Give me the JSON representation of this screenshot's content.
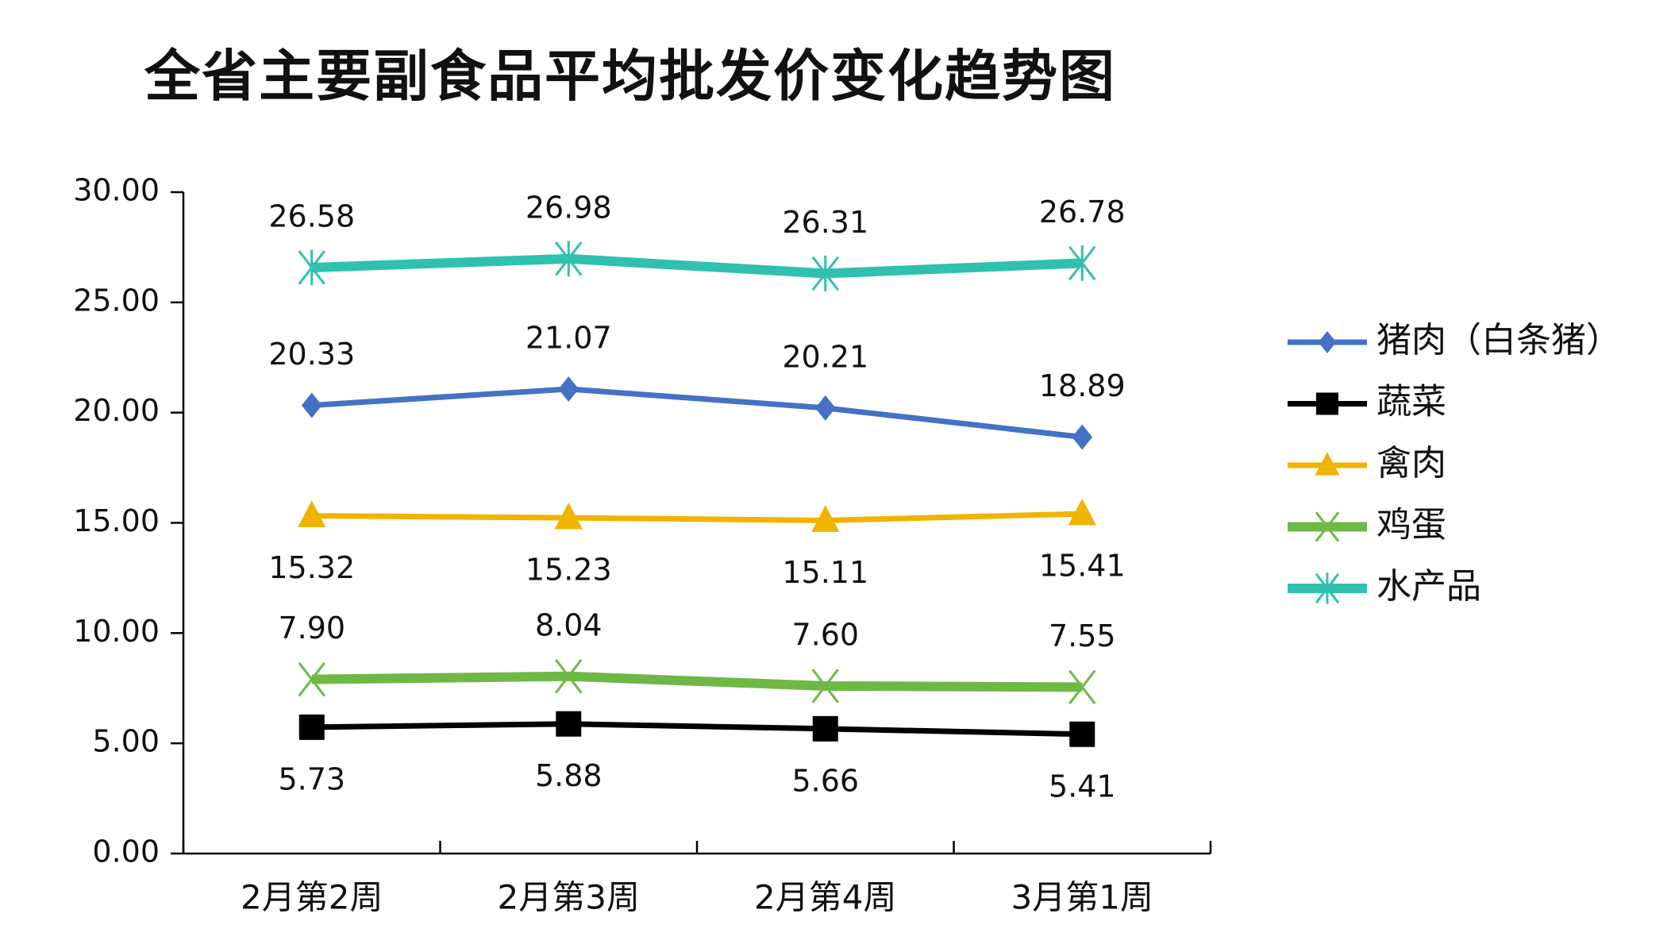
{
  "chart_data": {
    "type": "line",
    "title": "全省主要副食品平均批发价变化趋势图",
    "xlabel": "",
    "ylabel": "",
    "ylim": [
      0,
      30
    ],
    "yticks": [
      "0.00",
      "5.00",
      "10.00",
      "15.00",
      "20.00",
      "25.00",
      "30.00"
    ],
    "categories": [
      "2月第2周",
      "2月第3周",
      "2月第4周",
      "3月第1周"
    ],
    "legend_position": "right",
    "grid": false,
    "series": [
      {
        "name": "猪肉（白条猪）",
        "color": "#4472C4",
        "marker": "diamond",
        "label_pos": "above",
        "values": [
          20.33,
          21.07,
          20.21,
          18.89
        ],
        "labels": [
          "20.33",
          "21.07",
          "20.21",
          "18.89"
        ]
      },
      {
        "name": "蔬菜",
        "color": "#000000",
        "marker": "square",
        "label_pos": "below",
        "values": [
          5.73,
          5.88,
          5.66,
          5.41
        ],
        "labels": [
          "5.73",
          "5.88",
          "5.66",
          "5.41"
        ]
      },
      {
        "name": "禽肉",
        "color": "#F0B400",
        "marker": "triangle",
        "label_pos": "below",
        "values": [
          15.32,
          15.23,
          15.11,
          15.41
        ],
        "labels": [
          "15.32",
          "15.23",
          "15.11",
          "15.41"
        ]
      },
      {
        "name": "鸡蛋",
        "color": "#70B845",
        "marker": "x",
        "label_pos": "above",
        "values": [
          7.9,
          8.04,
          7.6,
          7.55
        ],
        "labels": [
          "7.90",
          "8.04",
          "7.60",
          "7.55"
        ]
      },
      {
        "name": "水产品",
        "color": "#30C0B0",
        "marker": "star",
        "label_pos": "above",
        "values": [
          26.58,
          26.98,
          26.31,
          26.78
        ],
        "labels": [
          "26.58",
          "26.98",
          "26.31",
          "26.78"
        ]
      }
    ]
  }
}
